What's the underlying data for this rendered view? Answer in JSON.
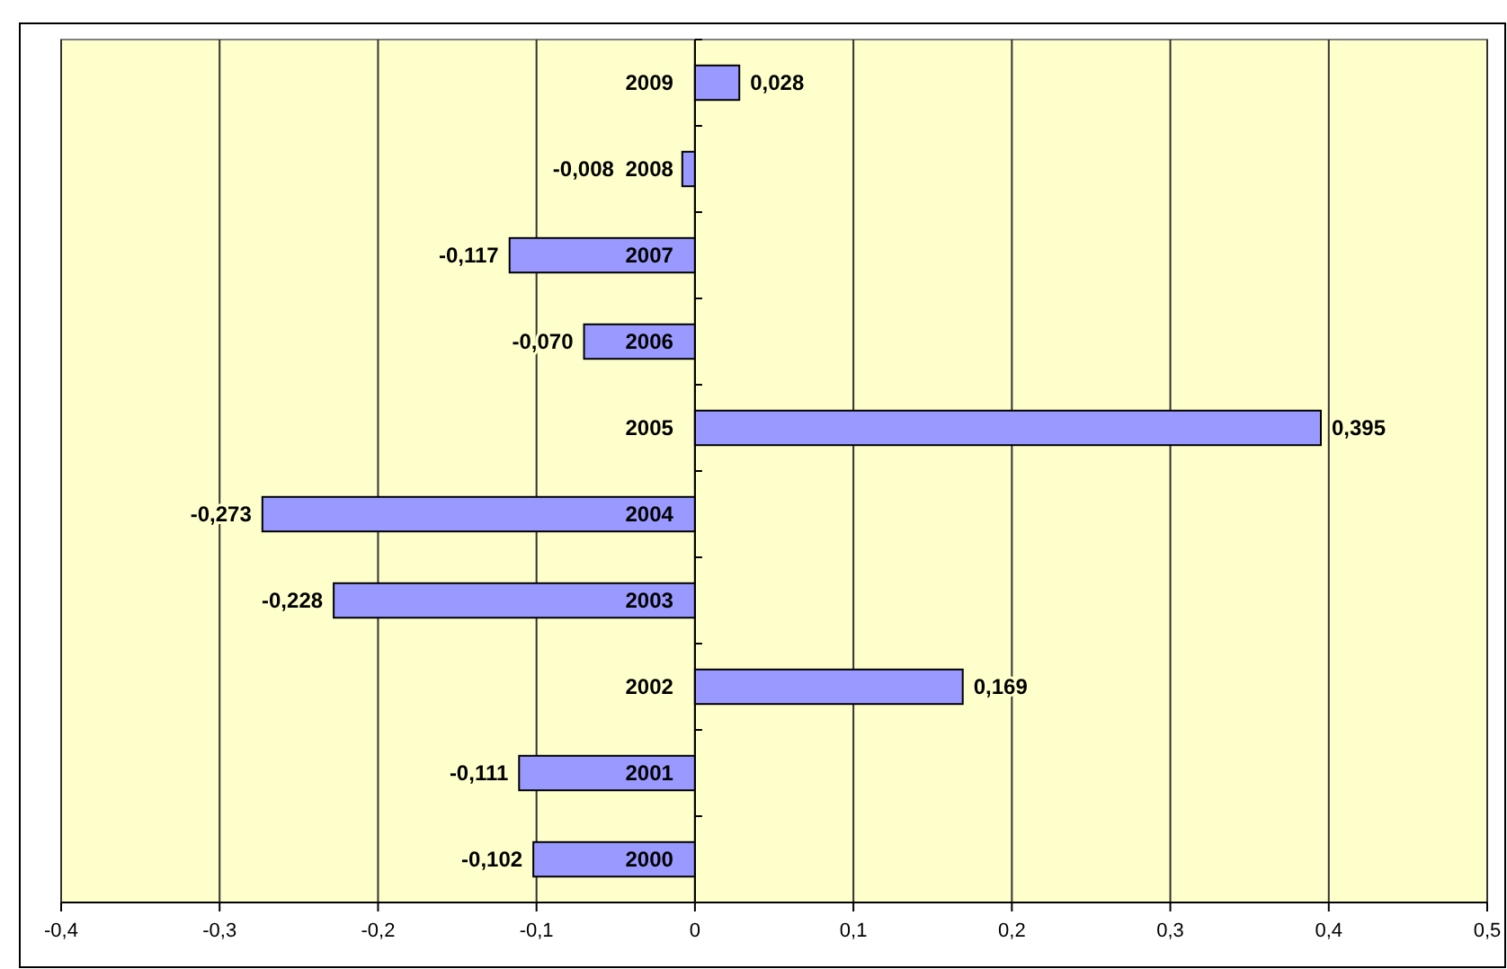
{
  "chart_data": {
    "type": "bar",
    "orientation": "horizontal",
    "categories": [
      "2009",
      "2008",
      "2007",
      "2006",
      "2005",
      "2004",
      "2003",
      "2002",
      "2001",
      "2000"
    ],
    "values": [
      0.028,
      -0.008,
      -0.117,
      -0.07,
      0.395,
      -0.273,
      -0.228,
      0.169,
      -0.111,
      -0.102
    ],
    "value_labels": [
      "0,028",
      "-0,008",
      "-0,117",
      "-0,070",
      "0,395",
      "-0,273",
      "-0,228",
      "0,169",
      "-0,111",
      "-0,102"
    ],
    "color": "#9999ff",
    "xlim": [
      -0.4,
      0.5
    ],
    "xticks": [
      {
        "value": -0.4,
        "label": "-0,4"
      },
      {
        "value": -0.3,
        "label": "-0,3"
      },
      {
        "value": -0.2,
        "label": "-0,2"
      },
      {
        "value": -0.1,
        "label": "-0,1"
      },
      0,
      {
        "value": 0.1,
        "label": "0,1"
      },
      {
        "value": 0.2,
        "label": "0,2"
      },
      {
        "value": 0.3,
        "label": "0,3"
      },
      {
        "value": 0.4,
        "label": "0,4"
      },
      {
        "value": 0.5,
        "label": "0,5"
      }
    ],
    "grid": "x"
  }
}
